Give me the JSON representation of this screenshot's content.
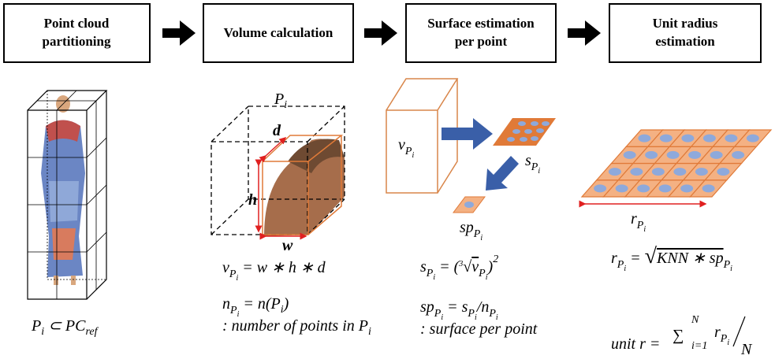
{
  "steps": [
    {
      "lines": [
        "Point cloud",
        "partitioning"
      ]
    },
    {
      "lines": [
        "Volume calculation"
      ]
    },
    {
      "lines": [
        "Surface estimation",
        "per point"
      ]
    },
    {
      "lines": [
        "Unit radius",
        "estimation"
      ]
    }
  ],
  "partition": {
    "set": {
      "p": "P",
      "i": "i",
      "rel": " ⊂ PC",
      "ref": "ref"
    }
  },
  "volume": {
    "cell": {
      "p": "P",
      "i": "i"
    },
    "d": "d",
    "h": "h",
    "w": "w",
    "v_formula": {
      "v": "v",
      "p": "P",
      "i": "i",
      "rest": " = w ∗ h ∗ d"
    },
    "n_formula": {
      "n": "n",
      "p": "P",
      "i": "i",
      "rest": " = n(P",
      "i2": "i",
      "close": ")"
    },
    "note": {
      "text": ": number of points in P",
      "i": "i"
    }
  },
  "surface": {
    "v_label": {
      "v": "v",
      "p": "P",
      "i": "i"
    },
    "s_label": {
      "s": "s",
      "p": "P",
      "i": "i"
    },
    "sp_label": {
      "sp": "sp",
      "p": "P",
      "i": "i"
    },
    "s_formula": {
      "s": "s",
      "p": "P",
      "i": "i",
      "open": " = (",
      "root": "3",
      "rad": "√",
      "v": "v",
      "p2": "P",
      "i2": "i",
      "close": ")",
      "exp": "2"
    },
    "sp_formula": {
      "sp": "sp",
      "p": "P",
      "i": "i",
      "eq": " = s",
      "p2": "P",
      "i2": "i",
      "div": "/n",
      "p3": "P",
      "i3": "i"
    },
    "note": ": surface per point"
  },
  "radius": {
    "r_label": {
      "r": "r",
      "p": "P",
      "i": "i"
    },
    "r_formula": {
      "r": "r",
      "p": "P",
      "i": "i",
      "eq": " = ",
      "rad": "√",
      "knn": "KNN ∗ sp",
      "p2": "P",
      "i2": "i"
    },
    "unit_formula": {
      "lhs": "unit r = ",
      "sum": "∑",
      "lower": "i=1",
      "upper": "N",
      "r": "r",
      "p": "P",
      "i": "i",
      "den": "N"
    }
  }
}
